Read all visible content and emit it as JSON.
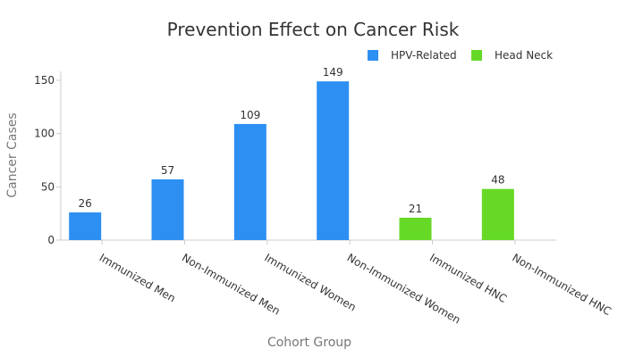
{
  "chart_data": {
    "type": "bar",
    "title": "Prevention Effect on Cancer Risk",
    "xlabel": "Cohort Group",
    "ylabel": "Cancer Cases",
    "ylim": [
      0,
      155
    ],
    "yticks": [
      0,
      50,
      100,
      150
    ],
    "grid": false,
    "legend_position": "top-right",
    "categories": [
      "Immunized Men",
      "Non-Immunized Men",
      "Immunized Women",
      "Non-Immunized Women",
      "Immunized HNC",
      "Non-Immunized HNC"
    ],
    "series": [
      {
        "name": "HPV-Related",
        "color": "#2d8ff2",
        "values": [
          26,
          57,
          109,
          149,
          null,
          null
        ]
      },
      {
        "name": "Head Neck",
        "color": "#66d926",
        "values": [
          null,
          null,
          null,
          null,
          21,
          48
        ]
      }
    ]
  }
}
